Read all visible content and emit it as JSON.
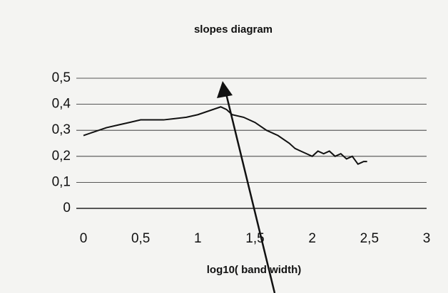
{
  "chart_data": {
    "type": "line",
    "title": "slopes diagram",
    "x_label": "log10( band width)",
    "x": [
      0,
      0.1,
      0.2,
      0.3,
      0.4,
      0.5,
      0.6,
      0.7,
      0.8,
      0.9,
      1.0,
      1.1,
      1.2,
      1.25,
      1.3,
      1.4,
      1.5,
      1.6,
      1.7,
      1.8,
      1.85,
      1.9,
      1.95,
      2.0,
      2.05,
      2.1,
      2.15,
      2.2,
      2.25,
      2.3,
      2.35,
      2.4,
      2.45,
      2.48
    ],
    "values": [
      0.28,
      0.295,
      0.31,
      0.32,
      0.33,
      0.34,
      0.34,
      0.34,
      0.345,
      0.35,
      0.36,
      0.375,
      0.39,
      0.38,
      0.36,
      0.35,
      0.33,
      0.3,
      0.28,
      0.25,
      0.23,
      0.22,
      0.21,
      0.2,
      0.22,
      0.21,
      0.22,
      0.2,
      0.21,
      0.19,
      0.2,
      0.17,
      0.18,
      0.18
    ],
    "color": "#111111",
    "xlim": [
      0,
      3
    ],
    "xticks": [
      0,
      {
        "value": 0.5,
        "label": "0,5"
      },
      1,
      {
        "value": 1.5,
        "label": "1,5"
      },
      2,
      {
        "value": 2.5,
        "label": "2,5"
      },
      3
    ],
    "ylim": [
      0,
      0.5
    ],
    "yticks": [
      0,
      {
        "value": 0.1,
        "label": "0,1"
      },
      {
        "value": 0.2,
        "label": "0,2"
      },
      {
        "value": 0.3,
        "label": "0,3"
      },
      {
        "value": 0.4,
        "label": "0,4"
      },
      {
        "value": 0.5,
        "label": "0,5"
      }
    ],
    "grid": true
  }
}
